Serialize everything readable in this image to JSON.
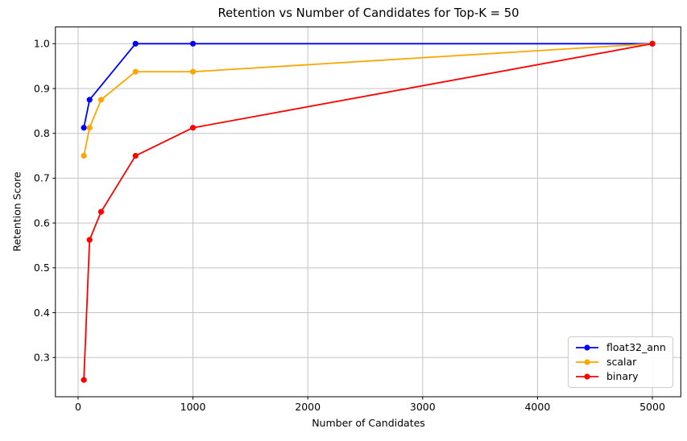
{
  "chart_data": {
    "type": "line",
    "title": "Retention vs Number of Candidates for Top-K = 50",
    "xlabel": "Number of Candidates",
    "ylabel": "Retention Score",
    "x_ticks": [
      0,
      1000,
      2000,
      3000,
      4000,
      5000
    ],
    "x_tick_labels": [
      "0",
      "1000",
      "2000",
      "3000",
      "4000",
      "5000"
    ],
    "y_ticks": [
      0.3,
      0.4,
      0.5,
      0.6,
      0.7,
      0.8,
      0.9,
      1.0
    ],
    "y_tick_labels": [
      "0.3",
      "0.4",
      "0.5",
      "0.6",
      "0.7",
      "0.8",
      "0.9",
      "1.0"
    ],
    "xlim": [
      -197.5,
      5247.5
    ],
    "ylim": [
      0.2125,
      1.0375
    ],
    "grid": true,
    "grid_color": "#c3c3c3",
    "axis_color": "#000000",
    "text_color": "#000000",
    "legend": {
      "position": "lower right",
      "border_color": "#cccccc",
      "background_color": "#ffffff"
    },
    "series": [
      {
        "name": "float32_ann",
        "color": "#0000ff",
        "x": [
          50,
          100,
          500,
          1000,
          5000
        ],
        "y": [
          0.8125,
          0.875,
          1.0,
          1.0,
          1.0
        ]
      },
      {
        "name": "scalar",
        "color": "#ffa500",
        "x": [
          50,
          100,
          200,
          500,
          1000,
          5000
        ],
        "y": [
          0.75,
          0.8125,
          0.875,
          0.9375,
          0.9375,
          1.0
        ]
      },
      {
        "name": "binary",
        "color": "#ff0000",
        "x": [
          50,
          100,
          200,
          500,
          1000,
          5000
        ],
        "y": [
          0.25,
          0.5625,
          0.625,
          0.75,
          0.8125,
          1.0
        ]
      }
    ]
  }
}
